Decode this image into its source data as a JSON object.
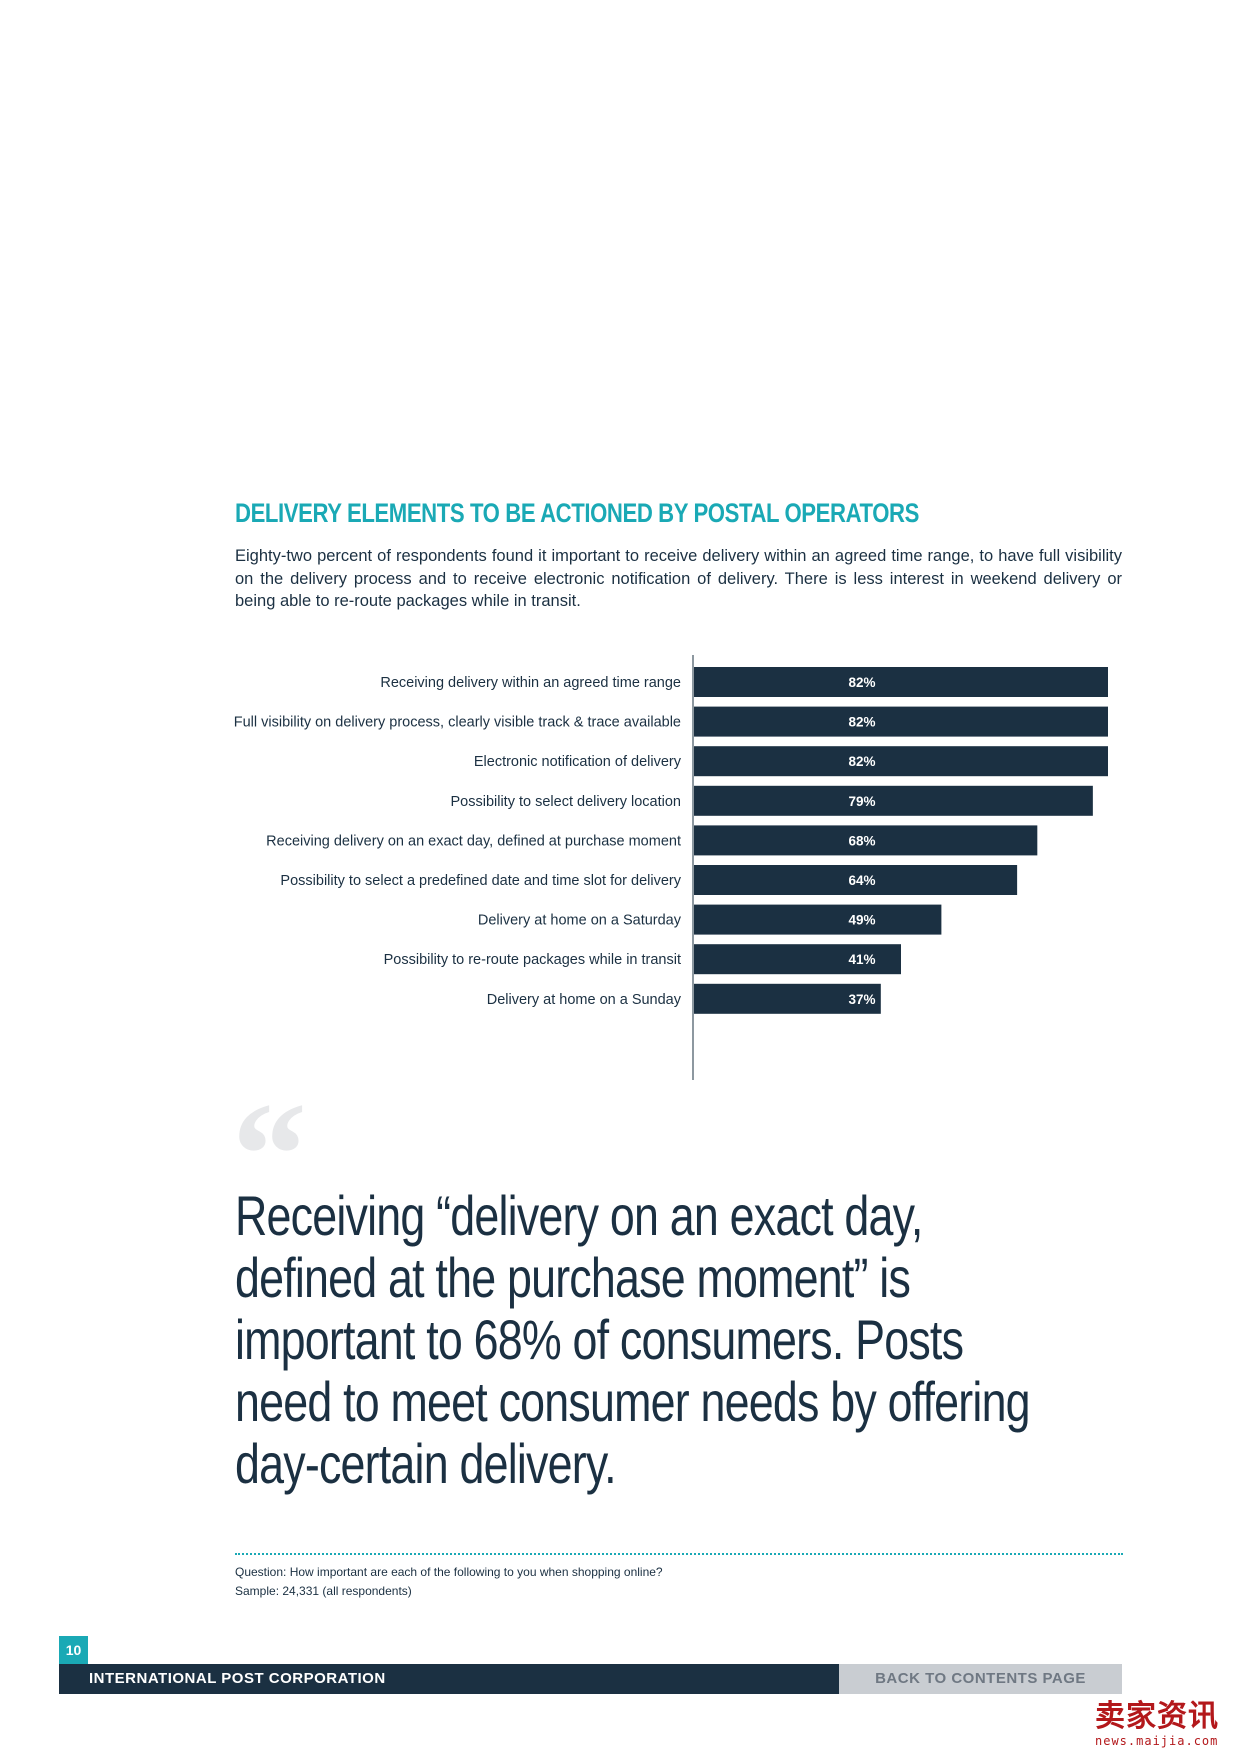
{
  "section": {
    "title": "DELIVERY ELEMENTS TO BE ACTIONED BY POSTAL OPERATORS",
    "intro": "Eighty-two percent of respondents found it important to receive delivery within an agreed time range, to have full visibility on the delivery process and to receive electronic notification of delivery. There is less interest in weekend delivery or being able to re-route packages while in transit."
  },
  "chart_data": {
    "type": "bar",
    "orientation": "horizontal",
    "categories": [
      "Receiving delivery within an agreed time range",
      "Full visibility on delivery process, clearly visible track & trace available",
      "Electronic notification of delivery",
      "Possibility to select delivery location",
      "Receiving delivery on an exact day, defined at purchase moment",
      "Possibility to select a predefined date and time slot for delivery",
      "Delivery at home on a Saturday",
      "Possibility to re-route packages while in transit",
      "Delivery at home on a Sunday"
    ],
    "values": [
      82,
      82,
      82,
      79,
      68,
      64,
      49,
      41,
      37
    ],
    "value_labels": [
      "82%",
      "82%",
      "82%",
      "79%",
      "68%",
      "64%",
      "49%",
      "41%",
      "37%"
    ],
    "unit": "%",
    "xlim": [
      0,
      82
    ],
    "grid": false,
    "legend": "none",
    "bar_color": "#1b3042",
    "label_color": "#ffffff"
  },
  "quote": {
    "mark": "“",
    "text": "Receiving “delivery on an exact day, defined at the purchase moment” is important to 68% of consumers. Posts need to meet consumer needs by offering day-certain delivery."
  },
  "footnote": {
    "question": "Question: How important are each of the following to you when shopping online?",
    "sample": "Sample: 24,331 (all respondents)"
  },
  "footer": {
    "page_number": "10",
    "organization": "INTERNATIONAL POST CORPORATION",
    "back_link": "BACK TO CONTENTS PAGE"
  },
  "watermark": {
    "main": "卖家资讯",
    "sub": "news.maijia.com"
  },
  "colors": {
    "accent": "#1aa9b5",
    "navy": "#1b3042",
    "grey_button": "#c9cdd2"
  }
}
